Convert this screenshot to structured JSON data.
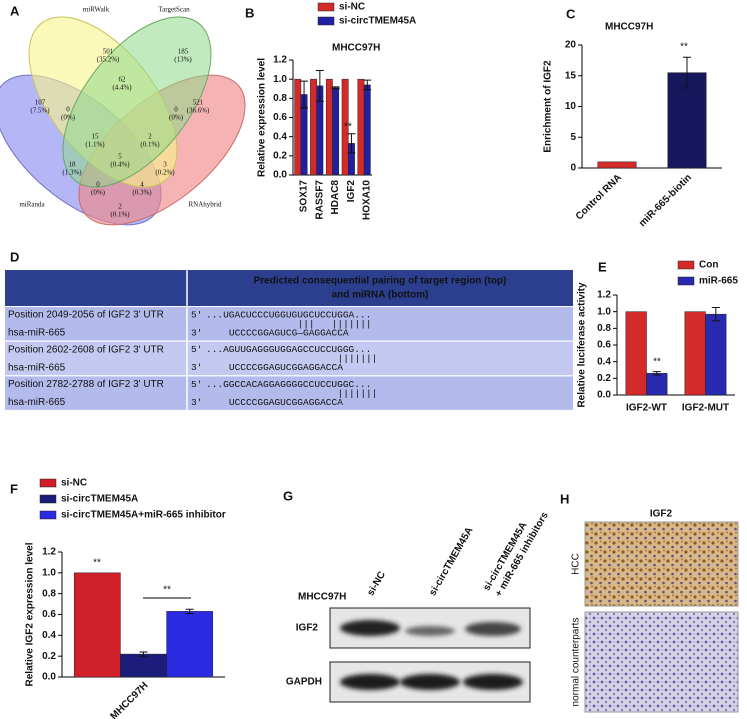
{
  "venn": {
    "panel": "A",
    "sets": [
      "miRWalk",
      "TargetScan",
      "miRanda",
      "RNAhybrid"
    ],
    "regions": [
      {
        "count": 501,
        "pct": "(35.2%)"
      },
      {
        "count": 185,
        "pct": "(13%)"
      },
      {
        "count": 107,
        "pct": "(7.5%)"
      },
      {
        "count": 521,
        "pct": "(36.6%)"
      },
      {
        "count": 0,
        "pct": "(0%)"
      },
      {
        "count": 62,
        "pct": "(4.4%)"
      },
      {
        "count": 0,
        "pct": "(0%)"
      },
      {
        "count": 15,
        "pct": "(1.1%)"
      },
      {
        "count": 2,
        "pct": "(0.1%)"
      },
      {
        "count": 18,
        "pct": "(1.3%)"
      },
      {
        "count": 5,
        "pct": "(0.4%)"
      },
      {
        "count": 3,
        "pct": "(0.2%)"
      },
      {
        "count": 0,
        "pct": "(0%)"
      },
      {
        "count": 4,
        "pct": "(0.3%)"
      },
      {
        "count": 2,
        "pct": "(0.1%)"
      }
    ]
  },
  "chart_data": [
    {
      "type": "bar",
      "panel": "B",
      "title": "MHCC97H",
      "ylabel": "Relative expression level",
      "categories": [
        "SOX17",
        "RASSF7",
        "HDAC8",
        "IGF2",
        "HOXA10"
      ],
      "series": [
        {
          "name": "si-NC",
          "color": "#d42a2a",
          "values": [
            1,
            1,
            1,
            1,
            1
          ]
        },
        {
          "name": "si-circTMEM45A",
          "color": "#2020a0",
          "values": [
            0.84,
            0.93,
            0.91,
            0.33,
            0.94
          ],
          "errors": [
            0.14,
            0.16,
            0.01,
            0.1,
            0.05
          ]
        }
      ],
      "ylim": [
        0,
        1.2
      ],
      "yticks": [
        {
          "value": 0,
          "label": "0.0"
        },
        0.2,
        0.4,
        0.6,
        0.8,
        {
          "value": 1,
          "label": "1.0"
        },
        1.2
      ],
      "annotations": [
        "**"
      ]
    },
    {
      "type": "bar",
      "panel": "C",
      "title": "MHCC97H",
      "ylabel": "Enrichment of IGF2",
      "categories": [
        "Control RNA",
        "miR-665-biotin"
      ],
      "values": [
        1,
        15.5
      ],
      "errors": [
        0,
        2.5
      ],
      "colors": [
        "#d42a2a",
        "#17175e"
      ],
      "ylim": [
        0,
        20
      ],
      "yticks": [
        0,
        5,
        10,
        15,
        20
      ],
      "annotations": [
        "**"
      ]
    },
    {
      "type": "bar",
      "panel": "E",
      "ylabel": "Relative luciferase activity",
      "categories": [
        "IGF2-WT",
        "IGF2-MUT"
      ],
      "series": [
        {
          "name": "Con",
          "color": "#d42a2a",
          "values": [
            1,
            1
          ]
        },
        {
          "name": "miR-665",
          "color": "#2a2ab0",
          "values": [
            0.26,
            0.97
          ],
          "errors": [
            0.02,
            0.08
          ]
        }
      ],
      "ylim": [
        0,
        1.2
      ],
      "yticks": [
        {
          "value": 0,
          "label": "0.0"
        },
        0.2,
        0.4,
        0.6,
        0.8,
        {
          "value": 1,
          "label": "1.0"
        },
        1.2
      ],
      "annotations": [
        "**"
      ]
    },
    {
      "type": "bar",
      "panel": "F",
      "ylabel": "Relative IGF2 expression level",
      "categories": [
        "MHCC97H"
      ],
      "series": [
        {
          "name": "si-NC",
          "color": "#d0202a",
          "values": [
            1
          ]
        },
        {
          "name": "si-circTMEM45A",
          "color": "#1c1c7a",
          "values": [
            0.22
          ],
          "errors": [
            0.02
          ]
        },
        {
          "name": "si-circTMEM45A+miR-665 inhibitor",
          "color": "#2a2ae0",
          "values": [
            0.63
          ],
          "errors": [
            0.02
          ]
        }
      ],
      "ylim": [
        0,
        1.2
      ],
      "yticks": [
        {
          "value": 0,
          "label": "0.0"
        },
        0.2,
        0.4,
        0.6,
        0.8,
        {
          "value": 1,
          "label": "1.0"
        },
        1.2
      ],
      "annotations": [
        "**",
        "**"
      ]
    }
  ],
  "table": {
    "panel": "D",
    "header": [
      "Predicted consequential pairing of target region (top)",
      "and miRNA (bottom)"
    ],
    "rows": [
      {
        "target": "Position 2049-2056 of IGF2 3' UTR",
        "target_end": "5'",
        "target_seq": "...UGACUCCCUGGUGUGCUCCUGGA...",
        "pairing": "|||   |||||||",
        "mirna": "hsa-miR-665",
        "mirna_end": "3'",
        "mirna_seq": "UCCCCGGAGUCG—GAGGACCA"
      },
      {
        "target": "Position 2602-2608 of IGF2 3' UTR",
        "target_end": "5'",
        "target_seq": "...AGUUGAGGGUGGAGCCUCCUGGG...",
        "pairing": "|||||||",
        "mirna": "hsa-miR-665",
        "mirna_end": "3'",
        "mirna_seq": "UCCCCGGAGUCGGAGGACCA"
      },
      {
        "target": "Position 2782-2788 of IGF2 3' UTR",
        "target_end": "5'",
        "target_seq": "...GGCCACAGGAGGGGCCUCCUGGC...",
        "pairing": "|||||||",
        "mirna": "hsa-miR-665",
        "mirna_end": "3'",
        "mirna_seq": "UCCCCGGAGUCGGAGGACCA"
      }
    ]
  },
  "blot": {
    "panel": "G",
    "lanes": [
      "si-NC",
      "si-circTMEM45A",
      [
        "si-circTMEM45A",
        "+ miR-665 inhibitors"
      ]
    ],
    "cell_line": "MHCC97H",
    "proteins": [
      "IGF2",
      "GAPDH"
    ]
  },
  "ihc": {
    "panel": "H",
    "title": "IGF2",
    "rows": [
      "HCC",
      "normal counterparts"
    ]
  }
}
